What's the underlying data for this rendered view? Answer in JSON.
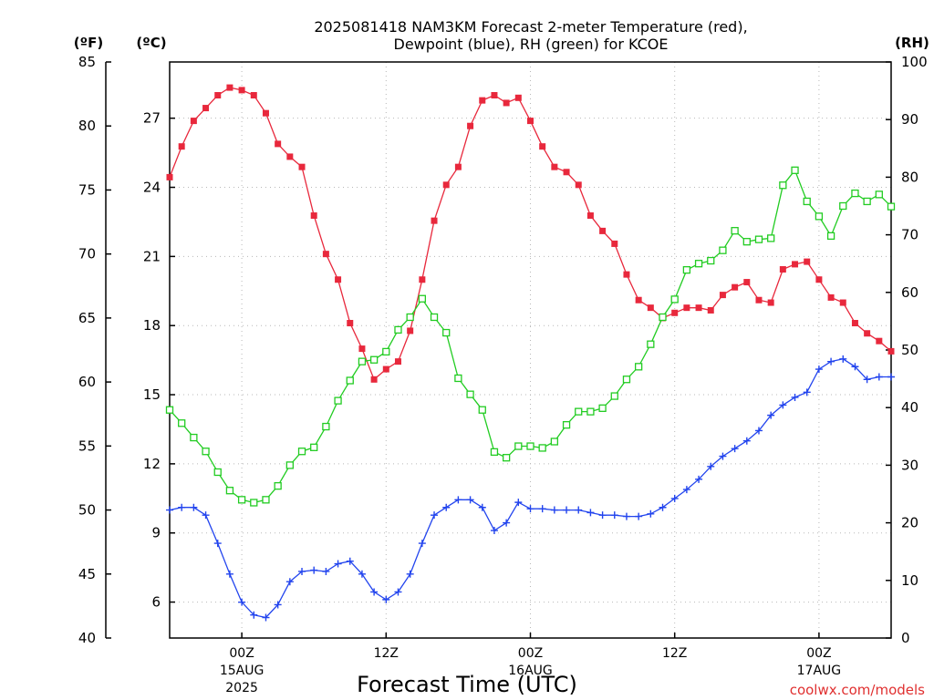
{
  "title_lines": [
    "2025081418 NAM3KM Forecast 2-meter Temperature (red),",
    "Dewpoint (blue), RH (green) for KCOE"
  ],
  "units": {
    "f": "(ºF)",
    "c": "(ºC)",
    "rh": "(RH)"
  },
  "xlabel": "Forecast Time (UTC)",
  "credit": "coolwx.com/models",
  "colors": {
    "temperature": "#e8283c",
    "dewpoint": "#2244ee",
    "rh": "#22cc22",
    "grid": "#b8b8b8"
  },
  "chart_data": {
    "type": "line",
    "grid": true,
    "x_unit": "forecast hour from 2025-08-14 18Z",
    "x_range": [
      0,
      60
    ],
    "x_ticks": [
      {
        "hour": 6,
        "label": "00Z",
        "sub1": "15AUG",
        "sub2": "2025"
      },
      {
        "hour": 18,
        "label": "12Z",
        "sub1": "",
        "sub2": ""
      },
      {
        "hour": 30,
        "label": "00Z",
        "sub1": "16AUG",
        "sub2": ""
      },
      {
        "hour": 42,
        "label": "12Z",
        "sub1": "",
        "sub2": ""
      },
      {
        "hour": 54,
        "label": "00Z",
        "sub1": "17AUG",
        "sub2": ""
      }
    ],
    "y_axis_f": {
      "range": [
        40,
        85
      ],
      "ticks": [
        "40",
        "45",
        "50",
        "55",
        "60",
        "65",
        "70",
        "75",
        "80",
        "85"
      ]
    },
    "y_axis_c": {
      "range": [
        4.44,
        29.44
      ],
      "ticks": [
        "6",
        "9",
        "12",
        "15",
        "18",
        "21",
        "24",
        "27"
      ]
    },
    "y_axis_rh": {
      "range": [
        0,
        100
      ],
      "ticks": [
        "0",
        "10",
        "20",
        "30",
        "40",
        "50",
        "60",
        "70",
        "80",
        "90",
        "100"
      ]
    },
    "series": [
      {
        "key": "temperature",
        "axis": "f",
        "marker": "filled-square",
        "x": [
          0,
          1,
          2,
          3,
          4,
          5,
          6,
          7,
          8,
          9,
          10,
          11,
          12,
          13,
          14,
          15,
          16,
          17,
          18,
          19,
          20,
          21,
          22,
          23,
          24,
          25,
          26,
          27,
          28,
          29,
          30,
          31,
          32,
          33,
          34,
          35,
          36,
          37,
          38,
          39,
          40,
          41,
          42,
          43,
          44,
          45,
          46,
          47,
          48,
          49,
          50,
          51,
          52,
          53,
          54,
          55,
          56,
          57,
          58,
          59,
          60
        ],
        "values": [
          76.0,
          78.4,
          80.4,
          81.4,
          82.4,
          83.0,
          82.8,
          82.4,
          81.0,
          78.6,
          77.6,
          76.8,
          73.0,
          70.0,
          68.0,
          64.6,
          62.6,
          60.2,
          61.0,
          61.6,
          64.0,
          68.0,
          72.6,
          75.4,
          76.8,
          80.0,
          82.0,
          82.4,
          81.8,
          82.2,
          80.4,
          78.4,
          76.8,
          76.4,
          75.4,
          73.0,
          71.8,
          70.8,
          68.4,
          66.4,
          65.8,
          65.0,
          65.4,
          65.8,
          65.8,
          65.6,
          66.8,
          67.4,
          67.8,
          66.4,
          66.2,
          68.8,
          69.2,
          69.4,
          68.0,
          66.6,
          66.2,
          64.6,
          63.8,
          63.2,
          62.4
        ]
      },
      {
        "key": "dewpoint",
        "axis": "f",
        "marker": "plus",
        "x": [
          0,
          1,
          2,
          3,
          4,
          5,
          6,
          7,
          8,
          9,
          10,
          11,
          12,
          13,
          14,
          15,
          16,
          17,
          18,
          19,
          20,
          21,
          22,
          23,
          24,
          25,
          26,
          27,
          28,
          29,
          30,
          31,
          32,
          33,
          34,
          35,
          36,
          37,
          38,
          39,
          40,
          41,
          42,
          43,
          44,
          45,
          46,
          47,
          48,
          49,
          50,
          51,
          52,
          53,
          54,
          55,
          56,
          57,
          58,
          59,
          60
        ],
        "values": [
          50.0,
          50.2,
          50.2,
          49.6,
          47.4,
          45.0,
          42.8,
          41.8,
          41.6,
          42.6,
          44.4,
          45.2,
          45.3,
          45.2,
          45.8,
          46.0,
          45.0,
          43.6,
          43.0,
          43.6,
          45.0,
          47.4,
          49.6,
          50.2,
          50.8,
          50.8,
          50.2,
          48.4,
          49.0,
          50.6,
          50.1,
          50.1,
          50.0,
          50.0,
          50.0,
          49.8,
          49.6,
          49.6,
          49.5,
          49.5,
          49.7,
          50.2,
          50.9,
          51.6,
          52.4,
          53.4,
          54.2,
          54.8,
          55.4,
          56.2,
          57.4,
          58.2,
          58.8,
          59.2,
          61.0,
          61.6,
          61.8,
          61.2,
          60.2,
          60.4,
          60.4
        ]
      },
      {
        "key": "rh",
        "axis": "rh",
        "marker": "open-square",
        "x": [
          0,
          1,
          2,
          3,
          4,
          5,
          6,
          7,
          8,
          9,
          10,
          11,
          12,
          13,
          14,
          15,
          16,
          17,
          18,
          19,
          20,
          21,
          22,
          23,
          24,
          25,
          26,
          27,
          28,
          29,
          30,
          31,
          32,
          33,
          34,
          35,
          36,
          37,
          38,
          39,
          40,
          41,
          42,
          43,
          44,
          45,
          46,
          47,
          48,
          49,
          50,
          51,
          52,
          53,
          54,
          55,
          56,
          57,
          58,
          59,
          60
        ],
        "values": [
          39.6,
          37.3,
          34.8,
          32.4,
          28.8,
          25.6,
          24.0,
          23.5,
          24.0,
          26.4,
          30.0,
          32.4,
          33.1,
          36.7,
          41.2,
          44.7,
          48.0,
          48.3,
          49.7,
          53.5,
          55.7,
          58.9,
          55.7,
          53.0,
          45.1,
          42.3,
          39.6,
          32.3,
          31.3,
          33.3,
          33.3,
          33.0,
          34.1,
          37.0,
          39.3,
          39.3,
          39.9,
          42.0,
          44.9,
          47.1,
          51.0,
          55.7,
          58.8,
          63.9,
          65.0,
          65.5,
          67.3,
          70.7,
          68.8,
          69.2,
          69.4,
          78.6,
          81.2,
          75.8,
          73.2,
          69.8,
          75.0,
          77.2,
          75.8,
          77.0,
          74.9
        ]
      }
    ]
  }
}
